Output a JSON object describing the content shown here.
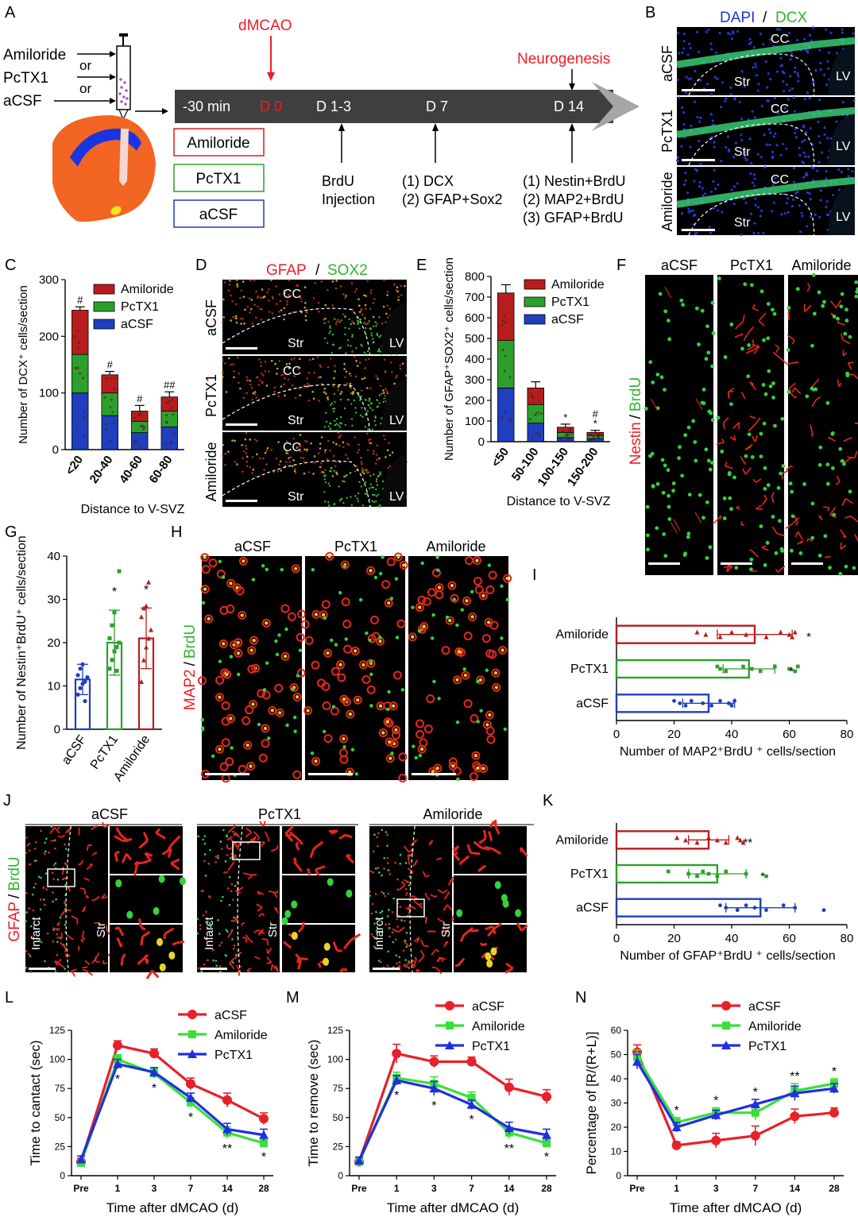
{
  "panels": {
    "A": {
      "letter": "A",
      "drug_labels": [
        "Amiloride",
        "or",
        "PcTX1",
        "or",
        "aCSF"
      ],
      "event_top": "dMCAO",
      "event_right": "Neurogenesis",
      "timeline": [
        "-30 min",
        "D 0",
        "D 1-3",
        "D 7",
        "D 14"
      ],
      "groups": [
        "Amiloride",
        "PcTX1",
        "aCSF"
      ],
      "notes": {
        "d13": [
          "BrdU",
          "Injection"
        ],
        "d7": [
          "(1) DCX",
          "(2) GFAP+Sox2"
        ],
        "d14": [
          "(1) Nestin+BrdU",
          "(2) MAP2+BrdU",
          "(3) GFAP+BrdU"
        ]
      },
      "colors": {
        "amiloride": "#e31a1c",
        "pctx1": "#2ca02c",
        "acsf": "#1f3fbf",
        "red": "#ee1c25"
      }
    },
    "B": {
      "letter": "B",
      "title_a": "DAPI",
      "title_sep": "/",
      "title_b": "DCX",
      "rows": [
        "aCSF",
        "PcTX1",
        "Amiloride"
      ],
      "labels": {
        "cc": "CC",
        "str": "Str",
        "lv": "LV"
      }
    },
    "C": {
      "letter": "C"
    },
    "D": {
      "letter": "D",
      "title_a": "GFAP",
      "title_sep": "/",
      "title_b": "SOX2",
      "rows": [
        "aCSF",
        "PcTX1",
        "Amiloride"
      ],
      "labels": {
        "cc": "CC",
        "str": "Str",
        "lv": "LV"
      }
    },
    "E": {
      "letter": "E"
    },
    "F": {
      "letter": "F",
      "cols": [
        "aCSF",
        "PcTX1",
        "Amiloride"
      ],
      "side_a": "Nestin",
      "side_sep": "/",
      "side_b": "BrdU"
    },
    "G": {
      "letter": "G"
    },
    "H": {
      "letter": "H",
      "cols": [
        "aCSF",
        "PcTX1",
        "Amiloride"
      ],
      "side_a": "MAP2",
      "side_sep": "/",
      "side_b": "BrdU"
    },
    "I": {
      "letter": "I"
    },
    "J": {
      "letter": "J",
      "cols": [
        "aCSF",
        "PcTX1",
        "Amiloride"
      ],
      "side_a": "GFAP",
      "side_sep": "/",
      "side_b": "BrdU",
      "labels": {
        "infarct": "Infarct",
        "str": "Str"
      }
    },
    "K": {
      "letter": "K"
    },
    "L": {
      "letter": "L"
    },
    "M": {
      "letter": "M"
    },
    "N": {
      "letter": "N"
    }
  },
  "chart_data": [
    {
      "id": "C",
      "type": "bar",
      "stacked": true,
      "categories": [
        "<20",
        "20-40",
        "40-60",
        "60-80"
      ],
      "series": [
        {
          "name": "aCSF",
          "color": "#1f3fbf",
          "values": [
            100,
            60,
            30,
            40
          ]
        },
        {
          "name": "PcTX1",
          "color": "#2ca02c",
          "values": [
            68,
            40,
            20,
            28
          ]
        },
        {
          "name": "Amiloride",
          "color": "#b81d1d",
          "values": [
            78,
            32,
            18,
            25
          ]
        }
      ],
      "errors": [
        6,
        6,
        10,
        9
      ],
      "annotations": [
        "#",
        "#",
        "#",
        "##"
      ],
      "ylabel": "Number of DCX⁺ cells/section",
      "xlabel": "Distance to V-SVZ",
      "ylim": [
        0,
        300
      ],
      "yticks": [
        0,
        100,
        200,
        300
      ],
      "legend": [
        "Amiloride",
        "PcTX1",
        "aCSF"
      ]
    },
    {
      "id": "E",
      "type": "bar",
      "stacked": true,
      "categories": [
        "<50",
        "50-100",
        "100-150",
        "150-200"
      ],
      "series": [
        {
          "name": "aCSF",
          "color": "#1f3fbf",
          "values": [
            260,
            90,
            20,
            15
          ]
        },
        {
          "name": "PcTX1",
          "color": "#2ca02c",
          "values": [
            230,
            90,
            25,
            15
          ]
        },
        {
          "name": "Amiloride",
          "color": "#b81d1d",
          "values": [
            230,
            80,
            25,
            15
          ]
        }
      ],
      "errors": [
        40,
        30,
        15,
        10
      ],
      "annotations": [
        "",
        "",
        "*",
        "#\n*"
      ],
      "ylabel": "Number of GFAP⁺SOX2⁺ cells/section",
      "xlabel": "Distance to V-SVZ",
      "ylim": [
        0,
        800
      ],
      "yticks": [
        0,
        100,
        200,
        300,
        400,
        500,
        600,
        700,
        800
      ],
      "legend": [
        "Amiloride",
        "PcTX1",
        "aCSF"
      ]
    },
    {
      "id": "G",
      "type": "bar",
      "categories": [
        "aCSF",
        "PcTX1",
        "Amiloride"
      ],
      "values": [
        11.5,
        20,
        21
      ],
      "errors": [
        3.5,
        7.5,
        7
      ],
      "colors": [
        "#1f3fbf",
        "#2ca02c",
        "#b81d1d"
      ],
      "points": [
        [
          8,
          9.5,
          10.5,
          11,
          12,
          12.5,
          14,
          15,
          6.5
        ],
        [
          14,
          16,
          18,
          19,
          20,
          21,
          24,
          27,
          13.5,
          36.5
        ],
        [
          11,
          16,
          19,
          21,
          23,
          26,
          28,
          28.5,
          34
        ]
      ],
      "annotations": [
        "",
        "*",
        "*"
      ],
      "ylabel": "Number of Nestin⁺BrdU⁺ cells/section",
      "ylim": [
        0,
        40
      ],
      "yticks": [
        0,
        10,
        20,
        30,
        40
      ]
    },
    {
      "id": "I",
      "type": "bar",
      "orientation": "horizontal",
      "categories": [
        "Amiloride",
        "PcTX1",
        "aCSF"
      ],
      "values": [
        48,
        46,
        32
      ],
      "errors": [
        13,
        9,
        9
      ],
      "colors": [
        "#b81d1d",
        "#2ca02c",
        "#1f3fbf"
      ],
      "points": [
        [
          28,
          31,
          36,
          40,
          45,
          52,
          57,
          60,
          61,
          62
        ],
        [
          35,
          36,
          38,
          44,
          47,
          50,
          55,
          60,
          62,
          63
        ],
        [
          20,
          22,
          24,
          26,
          30,
          33,
          36,
          39,
          40,
          41
        ]
      ],
      "annotations": [
        "*",
        "*",
        ""
      ],
      "xlabel": "Number of MAP2⁺BrdU ⁺ cells/section",
      "xlim": [
        0,
        80
      ],
      "xticks": [
        0,
        20,
        40,
        60,
        80
      ]
    },
    {
      "id": "K",
      "type": "bar",
      "orientation": "horizontal",
      "categories": [
        "Amiloride",
        "PcTX1",
        "aCSF"
      ],
      "values": [
        32,
        35,
        50
      ],
      "errors": [
        7,
        10,
        12
      ],
      "colors": [
        "#b81d1d",
        "#2ca02c",
        "#1f3fbf"
      ],
      "points": [
        [
          21,
          24,
          28,
          32,
          35,
          38,
          42,
          43,
          44
        ],
        [
          18,
          25,
          28,
          30,
          32,
          35,
          38,
          45,
          52
        ],
        [
          36,
          38,
          42,
          45,
          48,
          52,
          58,
          62,
          72
        ]
      ],
      "annotations": [
        "**",
        "*",
        ""
      ],
      "xlabel": "Number of GFAP⁺BrdU ⁺ cells/section",
      "xlim": [
        0,
        80
      ],
      "xticks": [
        0,
        20,
        40,
        60,
        80
      ]
    },
    {
      "id": "L",
      "type": "line",
      "x": [
        "Pre",
        "1",
        "3",
        "7",
        "14",
        "28"
      ],
      "series": [
        {
          "name": "aCSF",
          "color": "#e8202a",
          "marker": "circle",
          "values": [
            12,
            112,
            105,
            79,
            65,
            49
          ],
          "errors": [
            3,
            4,
            4,
            5,
            6,
            5
          ]
        },
        {
          "name": "Amiloride",
          "color": "#38e038",
          "marker": "square",
          "values": [
            11,
            100,
            88,
            63,
            37,
            28
          ],
          "errors": [
            3,
            4,
            4,
            4,
            5,
            3
          ]
        },
        {
          "name": "PcTX1",
          "color": "#1f2fe0",
          "marker": "triangle",
          "values": [
            14,
            96,
            89,
            67,
            40,
            35
          ],
          "errors": [
            3,
            4,
            4,
            4,
            5,
            5
          ]
        }
      ],
      "annotations": [
        "",
        "*",
        "*",
        "*",
        "**",
        "*"
      ],
      "ylabel": "Time to cantact (sec)",
      "xlabel": "Time after dMCAO (d)",
      "ylim": [
        0,
        125
      ],
      "yticks": [
        0,
        25,
        50,
        75,
        100,
        125
      ],
      "legend": [
        "aCSF",
        "Amiloride",
        "PcTX1"
      ]
    },
    {
      "id": "M",
      "type": "line",
      "x": [
        "Pre",
        "1",
        "3",
        "7",
        "14",
        "28"
      ],
      "series": [
        {
          "name": "aCSF",
          "color": "#e8202a",
          "marker": "circle",
          "values": [
            12,
            105,
            98,
            98,
            76,
            68
          ],
          "errors": [
            3,
            8,
            5,
            4,
            7,
            6
          ]
        },
        {
          "name": "Amiloride",
          "color": "#38e038",
          "marker": "square",
          "values": [
            12,
            84,
            79,
            67,
            37,
            28
          ],
          "errors": [
            3,
            5,
            6,
            5,
            5,
            3
          ]
        },
        {
          "name": "PcTX1",
          "color": "#1f2fe0",
          "marker": "triangle",
          "values": [
            13,
            82,
            75,
            61,
            41,
            35
          ],
          "errors": [
            3,
            4,
            6,
            4,
            5,
            5
          ]
        }
      ],
      "annotations": [
        "",
        "*",
        "*",
        "*",
        "**",
        "*"
      ],
      "ylabel": "Time to remove (sec)",
      "xlabel": "Time after dMCAO (d)",
      "ylim": [
        0,
        125
      ],
      "yticks": [
        0,
        25,
        50,
        75,
        100,
        125
      ],
      "legend": [
        "aCSF",
        "Amiloride",
        "PcTX1"
      ]
    },
    {
      "id": "N",
      "type": "line",
      "x": [
        "Pre",
        "1",
        "3",
        "7",
        "14",
        "28"
      ],
      "series": [
        {
          "name": "aCSF",
          "color": "#e8202a",
          "marker": "circle",
          "values": [
            51,
            12.5,
            14.5,
            16.5,
            24.5,
            26
          ],
          "errors": [
            3,
            1.5,
            3,
            4,
            3,
            2
          ]
        },
        {
          "name": "Amiloride",
          "color": "#38e038",
          "marker": "square",
          "values": [
            49,
            22,
            26,
            26,
            35,
            38
          ],
          "errors": [
            3,
            2,
            2,
            3,
            3,
            2
          ]
        },
        {
          "name": "PcTX1",
          "color": "#1f2fe0",
          "marker": "triangle",
          "values": [
            47,
            20,
            25,
            29.5,
            34,
            36
          ],
          "errors": [
            3,
            2,
            2,
            2,
            3,
            2
          ]
        }
      ],
      "annotations": [
        "",
        "*",
        "*",
        "*",
        "**",
        "*"
      ],
      "ylabel": "Percentage of [R/(R+L)]",
      "xlabel": "Time after dMCAO (d)",
      "ylim": [
        0,
        60
      ],
      "yticks": [
        0,
        10,
        20,
        30,
        40,
        50,
        60
      ],
      "legend": [
        "aCSF",
        "Amiloride",
        "PcTX1"
      ]
    }
  ]
}
